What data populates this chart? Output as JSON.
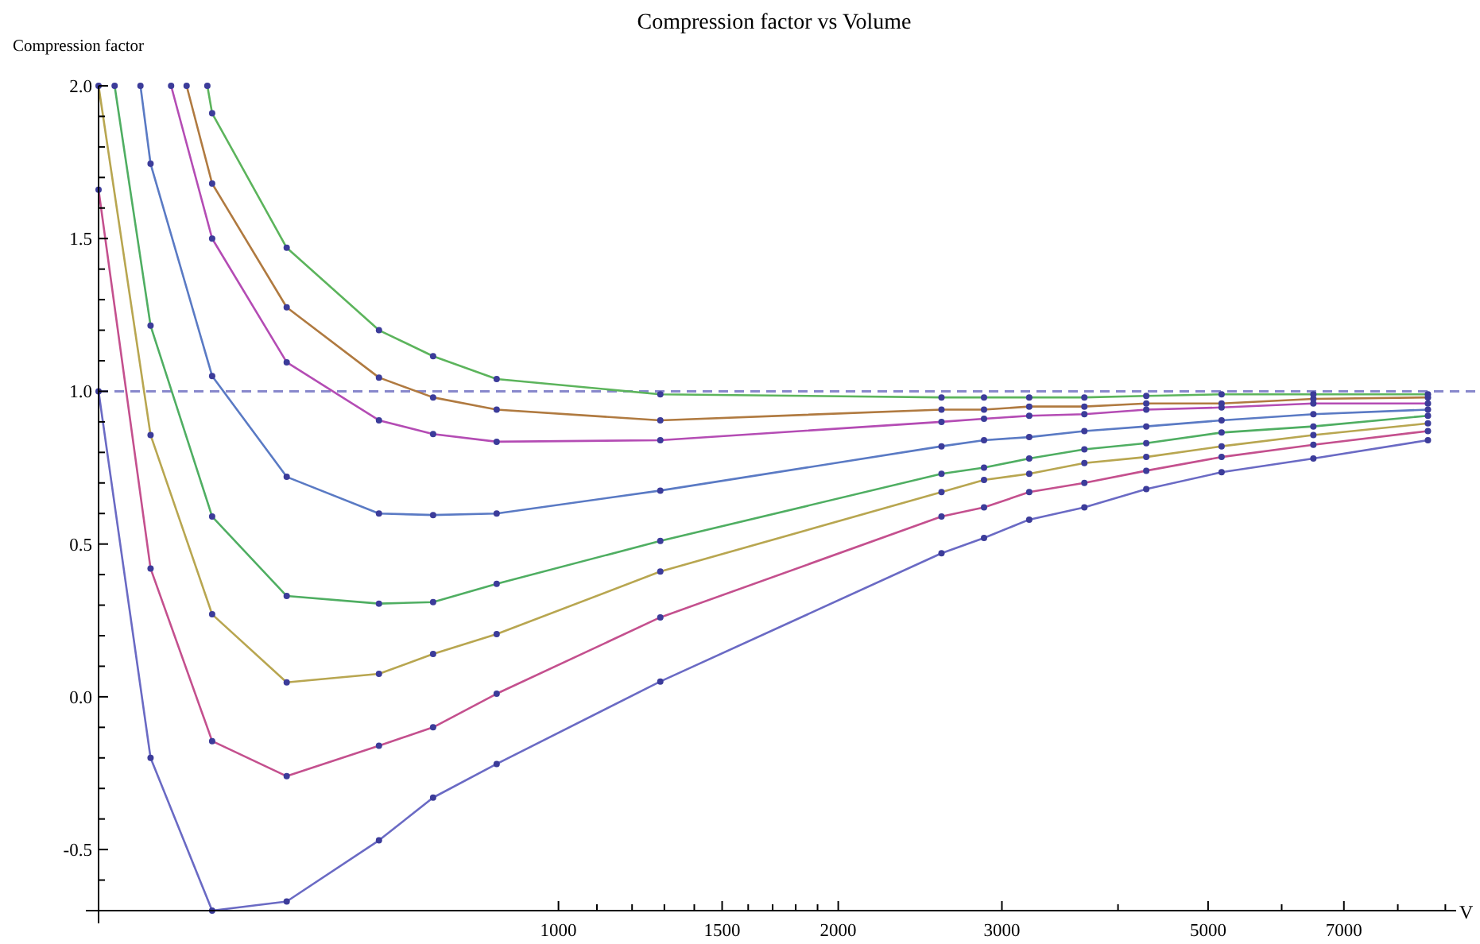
{
  "chart_data": {
    "type": "line",
    "title": "Compression factor vs Volume",
    "xlabel": "V",
    "ylabel": "Compression factor",
    "log": "x",
    "marker": "circle",
    "line_style": "solid",
    "grid": false,
    "xlim": [
      320,
      9100
    ],
    "ylim": [
      -0.7,
      2.0
    ],
    "xticks": [
      1000,
      {
        "value": 1100,
        "label": null
      },
      {
        "value": 1200,
        "label": null
      },
      {
        "value": 1300,
        "label": null
      },
      {
        "value": 1400,
        "label": null
      },
      1500,
      {
        "value": 1600,
        "label": null
      },
      {
        "value": 1700,
        "label": null
      },
      {
        "value": 1800,
        "label": null
      },
      {
        "value": 1900,
        "label": null
      },
      2000,
      3000,
      {
        "value": 4000,
        "label": null
      },
      5000,
      {
        "value": 6000,
        "label": null
      },
      7000,
      {
        "value": 8000,
        "label": null
      },
      {
        "value": 9000,
        "label": null
      }
    ],
    "yticks": [
      {
        "value": -0.6,
        "label": null
      },
      -0.5,
      {
        "value": -0.4,
        "label": null
      },
      {
        "value": -0.3,
        "label": null
      },
      {
        "value": -0.2,
        "label": null
      },
      {
        "value": -0.1,
        "label": null
      },
      {
        "value": 0,
        "label": "0.0"
      },
      {
        "value": 0.1,
        "label": null
      },
      {
        "value": 0.2,
        "label": null
      },
      {
        "value": 0.3,
        "label": null
      },
      {
        "value": 0.4,
        "label": null
      },
      0.5,
      {
        "value": 0.6,
        "label": null
      },
      {
        "value": 0.7,
        "label": null
      },
      {
        "value": 0.8,
        "label": null
      },
      {
        "value": 0.9,
        "label": null
      },
      {
        "value": 1,
        "label": "1.0"
      },
      {
        "value": 1.1,
        "label": null
      },
      {
        "value": 1.2,
        "label": null
      },
      {
        "value": 1.3,
        "label": null
      },
      {
        "value": 1.4,
        "label": null
      },
      1.5,
      {
        "value": 1.6,
        "label": null
      },
      {
        "value": 1.7,
        "label": null
      },
      {
        "value": 1.8,
        "label": null
      },
      {
        "value": 1.9,
        "label": null
      },
      {
        "value": 2,
        "label": "2.0"
      }
    ],
    "ref_lines": [
      {
        "axis": "y",
        "value": 1.0,
        "label": null,
        "color": "#8888cc",
        "line_style": "dashed"
      }
    ],
    "series": [
      {
        "color": "#6a6ac4",
        "x": [
          320,
          364,
          424,
          510,
          641,
          733,
          858,
          1287,
          2583,
          2870,
          3210,
          3680,
          4290,
          5170,
          6490,
          8620
        ],
        "values": [
          1.0,
          -0.2,
          -0.7,
          -0.67,
          -0.47,
          -0.33,
          -0.22,
          0.05,
          0.47,
          0.52,
          0.58,
          0.62,
          0.68,
          0.735,
          0.78,
          0.84
        ]
      },
      {
        "color": "#c4508e",
        "x": [
          320,
          364,
          424,
          510,
          641,
          733,
          858,
          1287,
          2583,
          2870,
          3210,
          3680,
          4290,
          5170,
          6490,
          8620
        ],
        "values": [
          1.66,
          0.42,
          -0.145,
          -0.26,
          -0.16,
          -0.1,
          0.01,
          0.26,
          0.59,
          0.62,
          0.67,
          0.7,
          0.74,
          0.785,
          0.825,
          0.87
        ]
      },
      {
        "color": "#b8a650",
        "x": [
          320,
          364,
          424,
          510,
          641,
          733,
          858,
          1287,
          2583,
          2870,
          3210,
          3680,
          4290,
          5170,
          6490,
          8620
        ],
        "values": [
          2.0,
          0.857,
          0.27,
          0.047,
          0.075,
          0.14,
          0.205,
          0.41,
          0.67,
          0.71,
          0.73,
          0.765,
          0.785,
          0.82,
          0.857,
          0.895
        ]
      },
      {
        "color": "#4fae62",
        "x": [
          333,
          364,
          424,
          510,
          641,
          733,
          858,
          1287,
          2583,
          2870,
          3210,
          3680,
          4290,
          5170,
          6490,
          8620
        ],
        "values": [
          2.0,
          1.215,
          0.59,
          0.33,
          0.305,
          0.31,
          0.37,
          0.51,
          0.73,
          0.75,
          0.78,
          0.81,
          0.83,
          0.865,
          0.885,
          0.92
        ]
      },
      {
        "color": "#5a7ac4",
        "x": [
          355,
          364,
          424,
          510,
          641,
          733,
          858,
          1287,
          2583,
          2870,
          3210,
          3680,
          4290,
          5170,
          6490,
          8620
        ],
        "values": [
          2.0,
          1.745,
          1.05,
          0.72,
          0.6,
          0.595,
          0.6,
          0.675,
          0.82,
          0.84,
          0.85,
          0.87,
          0.885,
          0.905,
          0.925,
          0.94
        ]
      },
      {
        "color": "#b44cb4",
        "x": [
          383,
          424,
          510,
          641,
          733,
          858,
          1287,
          2583,
          2870,
          3210,
          3680,
          4290,
          5170,
          6490,
          8620
        ],
        "values": [
          2.0,
          1.5,
          1.095,
          0.905,
          0.86,
          0.835,
          0.84,
          0.9,
          0.91,
          0.92,
          0.925,
          0.94,
          0.947,
          0.96,
          0.96
        ]
      },
      {
        "color": "#b07a40",
        "x": [
          398,
          424,
          510,
          641,
          733,
          858,
          1287,
          2583,
          2870,
          3210,
          3680,
          4290,
          5170,
          6490,
          8620
        ],
        "values": [
          2.0,
          1.68,
          1.275,
          1.045,
          0.98,
          0.94,
          0.905,
          0.94,
          0.94,
          0.95,
          0.95,
          0.96,
          0.96,
          0.975,
          0.98
        ]
      },
      {
        "color": "#5cb45c",
        "x": [
          419,
          424,
          510,
          641,
          733,
          858,
          1287,
          2583,
          2870,
          3210,
          3680,
          4290,
          5170,
          6490,
          8620
        ],
        "values": [
          2.0,
          1.91,
          1.47,
          1.2,
          1.115,
          1.04,
          0.99,
          0.98,
          0.98,
          0.98,
          0.98,
          0.985,
          0.99,
          0.99,
          0.99
        ]
      }
    ]
  }
}
